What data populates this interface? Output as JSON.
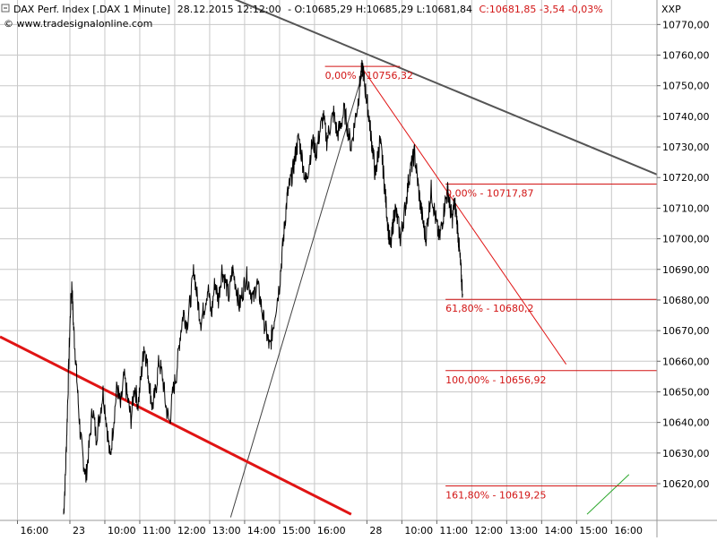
{
  "header": {
    "instrument": "DAX Perf. Index [.DAX  1 Minute]",
    "datetime": "28.12.2015 12:12:00",
    "ohlc_prefix": "- O:10685,29 H:10685,29 L:10681,84",
    "close": "C:10681,85 -3,54 -0,03%",
    "source": "© www.tradesignalonline.com",
    "axis_label": "XXP"
  },
  "chart_data": {
    "type": "line",
    "title": "DAX Perf. Index [.DAX  1 Minute]",
    "ylim": [
      10608,
      10778
    ],
    "y_ticks": [
      {
        "v": 10620,
        "label": "10620,00"
      },
      {
        "v": 10630,
        "label": "10630,00"
      },
      {
        "v": 10640,
        "label": "10640,00"
      },
      {
        "v": 10650,
        "label": "10650,00"
      },
      {
        "v": 10660,
        "label": "10660,00"
      },
      {
        "v": 10670,
        "label": "10670,00"
      },
      {
        "v": 10680,
        "label": "10680,00"
      },
      {
        "v": 10690,
        "label": "10690,00"
      },
      {
        "v": 10700,
        "label": "10700,00"
      },
      {
        "v": 10710,
        "label": "10710,00"
      },
      {
        "v": 10720,
        "label": "10720,00"
      },
      {
        "v": 10730,
        "label": "10730,00"
      },
      {
        "v": 10740,
        "label": "10740,00"
      },
      {
        "v": 10750,
        "label": "10750,00"
      },
      {
        "v": 10760,
        "label": "10760,00"
      },
      {
        "v": 10770,
        "label": "10770,00"
      }
    ],
    "x_ticks": [
      {
        "t": 0.5,
        "label": "16:00"
      },
      {
        "t": 2.0,
        "label": "23"
      },
      {
        "t": 3.0,
        "label": "10:00"
      },
      {
        "t": 4.0,
        "label": "11:00"
      },
      {
        "t": 5.0,
        "label": "12:00"
      },
      {
        "t": 6.0,
        "label": "13:00"
      },
      {
        "t": 7.0,
        "label": "14:00"
      },
      {
        "t": 8.0,
        "label": "15:00"
      },
      {
        "t": 9.0,
        "label": "16:00"
      },
      {
        "t": 10.5,
        "label": "28"
      },
      {
        "t": 11.5,
        "label": "10:00"
      },
      {
        "t": 12.5,
        "label": "11:00"
      },
      {
        "t": 13.5,
        "label": "12:00"
      },
      {
        "t": 14.5,
        "label": "13:00"
      },
      {
        "t": 15.5,
        "label": "14:00"
      },
      {
        "t": 16.5,
        "label": "15:00"
      },
      {
        "t": 17.5,
        "label": "16:00"
      }
    ],
    "xlim": [
      0,
      18.8
    ],
    "price_series": {
      "name": "DAX 1 Minute",
      "points": [
        [
          1.82,
          10610
        ],
        [
          1.87,
          10622
        ],
        [
          1.92,
          10640
        ],
        [
          1.97,
          10660
        ],
        [
          2.02,
          10678
        ],
        [
          2.06,
          10685
        ],
        [
          2.1,
          10672
        ],
        [
          2.16,
          10662
        ],
        [
          2.22,
          10650
        ],
        [
          2.3,
          10636
        ],
        [
          2.38,
          10628
        ],
        [
          2.46,
          10622
        ],
        [
          2.55,
          10632
        ],
        [
          2.65,
          10645
        ],
        [
          2.75,
          10635
        ],
        [
          2.85,
          10642
        ],
        [
          2.95,
          10650
        ],
        [
          3.05,
          10640
        ],
        [
          3.15,
          10628
        ],
        [
          3.25,
          10640
        ],
        [
          3.35,
          10652
        ],
        [
          3.45,
          10645
        ],
        [
          3.55,
          10655
        ],
        [
          3.65,
          10648
        ],
        [
          3.75,
          10641
        ],
        [
          3.85,
          10652
        ],
        [
          3.95,
          10646
        ],
        [
          4.05,
          10656
        ],
        [
          4.12,
          10665
        ],
        [
          4.2,
          10660
        ],
        [
          4.28,
          10652
        ],
        [
          4.36,
          10645
        ],
        [
          4.45,
          10650
        ],
        [
          4.55,
          10660
        ],
        [
          4.65,
          10655
        ],
        [
          4.75,
          10645
        ],
        [
          4.85,
          10640
        ],
        [
          4.95,
          10650
        ],
        [
          5.05,
          10656
        ],
        [
          5.15,
          10668
        ],
        [
          5.25,
          10676
        ],
        [
          5.35,
          10672
        ],
        [
          5.45,
          10680
        ],
        [
          5.55,
          10690
        ],
        [
          5.65,
          10680
        ],
        [
          5.75,
          10673
        ],
        [
          5.85,
          10678
        ],
        [
          5.95,
          10684
        ],
        [
          6.05,
          10675
        ],
        [
          6.15,
          10686
        ],
        [
          6.25,
          10680
        ],
        [
          6.35,
          10690
        ],
        [
          6.45,
          10686
        ],
        [
          6.55,
          10681
        ],
        [
          6.65,
          10690
        ],
        [
          6.75,
          10685
        ],
        [
          6.85,
          10678
        ],
        [
          6.95,
          10683
        ],
        [
          7.05,
          10688
        ],
        [
          7.15,
          10684
        ],
        [
          7.25,
          10680
        ],
        [
          7.35,
          10686
        ],
        [
          7.45,
          10680
        ],
        [
          7.55,
          10673
        ],
        [
          7.65,
          10668
        ],
        [
          7.72,
          10664
        ],
        [
          7.8,
          10670
        ],
        [
          7.9,
          10678
        ],
        [
          8.0,
          10685
        ],
        [
          8.08,
          10696
        ],
        [
          8.15,
          10705
        ],
        [
          8.22,
          10714
        ],
        [
          8.3,
          10718
        ],
        [
          8.38,
          10722
        ],
        [
          8.46,
          10728
        ],
        [
          8.55,
          10733
        ],
        [
          8.65,
          10726
        ],
        [
          8.75,
          10718
        ],
        [
          8.85,
          10725
        ],
        [
          8.95,
          10732
        ],
        [
          9.05,
          10728
        ],
        [
          9.15,
          10735
        ],
        [
          9.25,
          10740
        ],
        [
          9.35,
          10732
        ],
        [
          9.45,
          10737
        ],
        [
          9.55,
          10741
        ],
        [
          9.65,
          10734
        ],
        [
          9.75,
          10737
        ],
        [
          9.85,
          10742
        ],
        [
          9.95,
          10736
        ],
        [
          10.05,
          10730
        ],
        [
          10.15,
          10738
        ],
        [
          10.25,
          10745
        ],
        [
          10.32,
          10753
        ],
        [
          10.38,
          10756
        ],
        [
          10.44,
          10750
        ],
        [
          10.5,
          10745
        ],
        [
          10.56,
          10740
        ],
        [
          10.62,
          10733
        ],
        [
          10.68,
          10728
        ],
        [
          10.74,
          10720
        ],
        [
          10.8,
          10726
        ],
        [
          10.87,
          10732
        ],
        [
          10.94,
          10726
        ],
        [
          11.0,
          10718
        ],
        [
          11.06,
          10710
        ],
        [
          11.12,
          10702
        ],
        [
          11.18,
          10697
        ],
        [
          11.24,
          10704
        ],
        [
          11.3,
          10710
        ],
        [
          11.38,
          10706
        ],
        [
          11.46,
          10700
        ],
        [
          11.54,
          10706
        ],
        [
          11.62,
          10712
        ],
        [
          11.7,
          10720
        ],
        [
          11.78,
          10724
        ],
        [
          11.86,
          10728
        ],
        [
          11.94,
          10720
        ],
        [
          12.02,
          10712
        ],
        [
          12.1,
          10706
        ],
        [
          12.18,
          10700
        ],
        [
          12.26,
          10708
        ],
        [
          12.34,
          10716
        ],
        [
          12.42,
          10710
        ],
        [
          12.5,
          10704
        ],
        [
          12.58,
          10700
        ],
        [
          12.66,
          10706
        ],
        [
          12.74,
          10712
        ],
        [
          12.82,
          10716
        ],
        [
          12.88,
          10710
        ],
        [
          12.94,
          10706
        ],
        [
          13.0,
          10712
        ],
        [
          13.06,
          10708
        ],
        [
          13.12,
          10700
        ],
        [
          13.16,
          10694
        ],
        [
          13.2,
          10688
        ],
        [
          13.24,
          10682
        ]
      ]
    },
    "trendlines": [
      {
        "name": "falling resistance",
        "color": "#555555",
        "from": [
          5.5,
          10784
        ],
        "to": [
          18.8,
          10721
        ]
      },
      {
        "name": "rising support",
        "color": "#404040",
        "from": [
          6.6,
          10609
        ],
        "to": [
          10.4,
          10755
        ]
      },
      {
        "name": "long-term line",
        "color": "#e01414",
        "from": [
          0.0,
          10668
        ],
        "to": [
          10.05,
          10610
        ]
      },
      {
        "name": "projection",
        "color": "#e01414",
        "from": [
          10.35,
          10756
        ],
        "to": [
          16.2,
          10659
        ]
      },
      {
        "name": "small rising line",
        "color": "#2ea82e",
        "from": [
          16.8,
          10610
        ],
        "to": [
          18.0,
          10623
        ]
      }
    ],
    "fib_levels": [
      {
        "label": "0,00% - 10756,32",
        "value": 10756.32,
        "x_from": 9.3,
        "x_to": 11.45
      },
      {
        "label": "0,00% - 10717,87",
        "value": 10717.87,
        "x_from": 12.75,
        "x_to": 18.8
      },
      {
        "label": "61,80% - 10680,2",
        "value": 10680.2,
        "x_from": 12.75,
        "x_to": 18.8
      },
      {
        "label": "100,00% - 10656,92",
        "value": 10656.92,
        "x_from": 12.75,
        "x_to": 18.8
      },
      {
        "label": "161,80% - 10619,25",
        "value": 10619.25,
        "x_from": 12.75,
        "x_to": 18.8
      }
    ],
    "grid": true,
    "colors": {
      "header_red": "#d21414",
      "fib": "#d21414",
      "grid": "#c8c8c8",
      "price": "#000000"
    }
  }
}
